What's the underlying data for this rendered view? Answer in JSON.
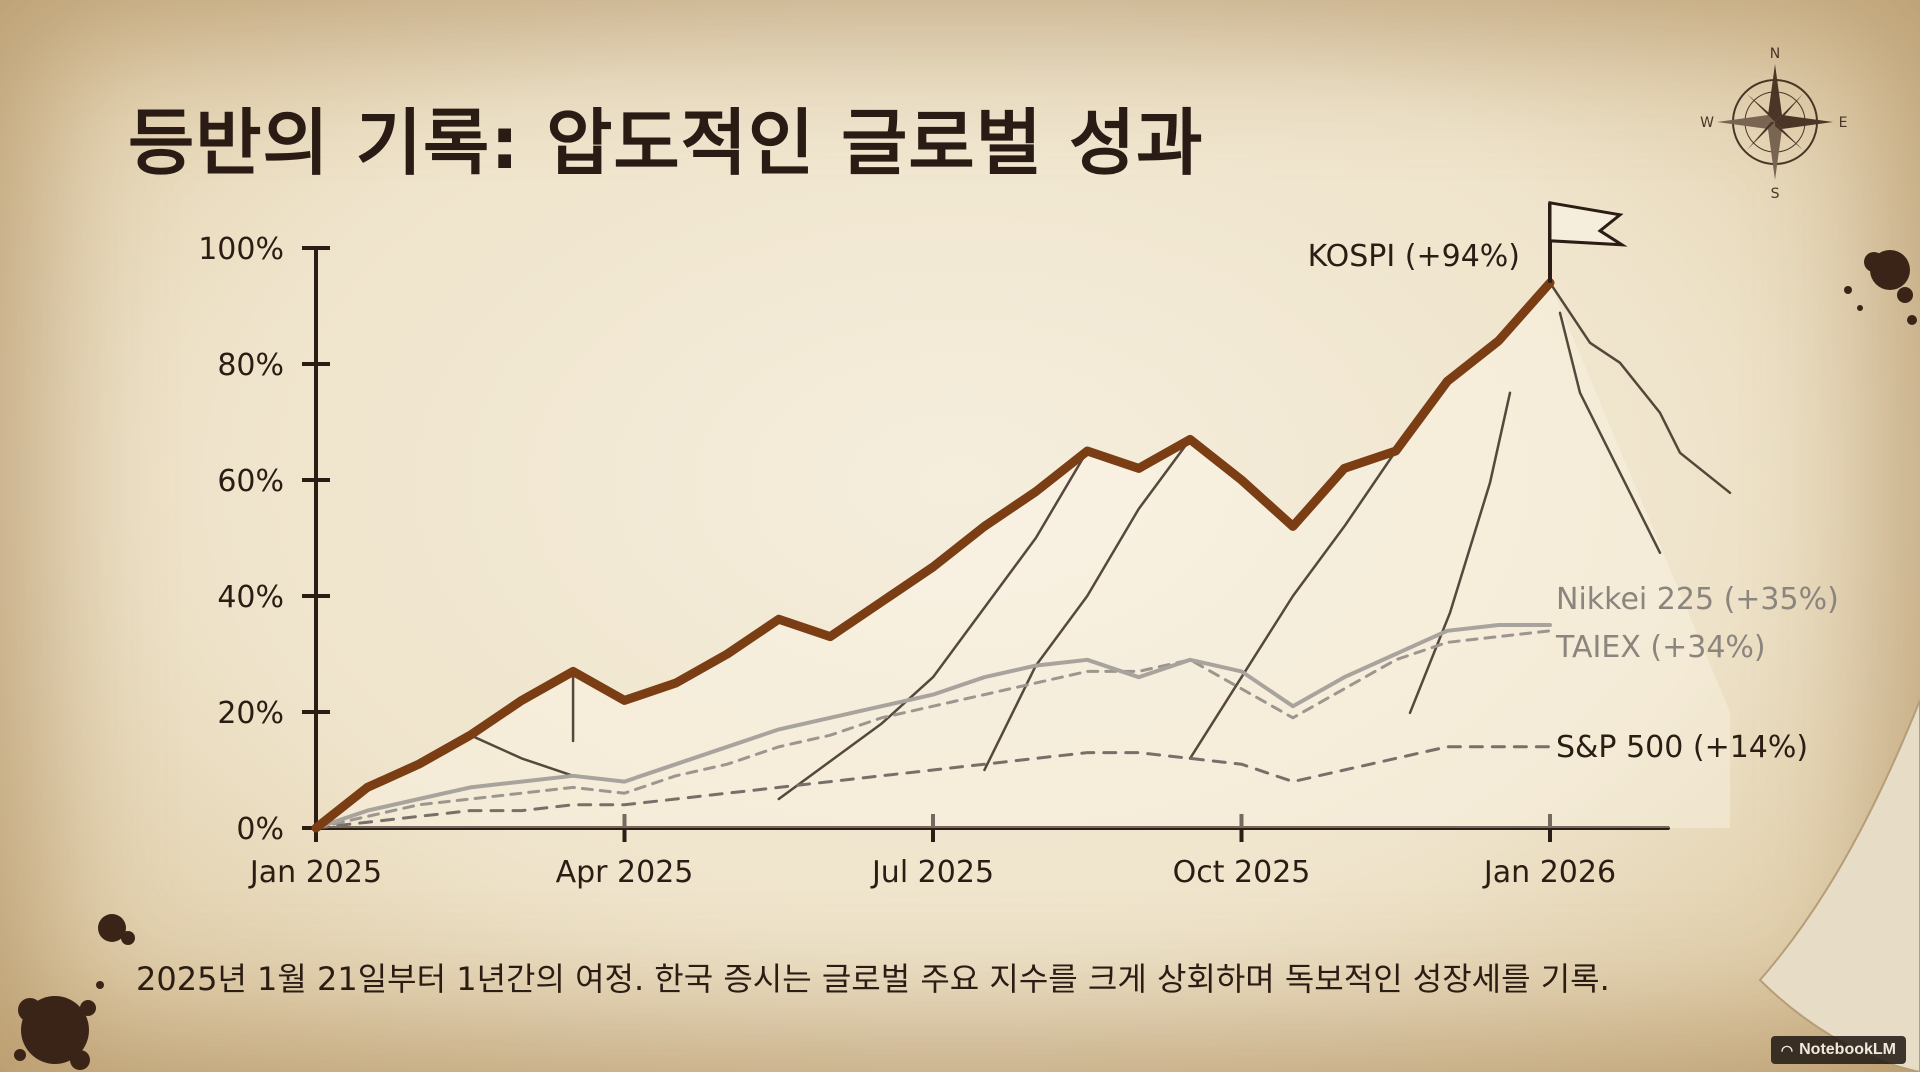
{
  "title": "등반의 기록: 압도적인 글로벌 성과",
  "caption": "2025년 1월 21일부터 1년간의 여정. 한국 증시는 글로벌 주요 지수를 크게 상회하며 독보적인 성장세를 기록.",
  "brand": "NotebookLM",
  "compass": {
    "n": "N",
    "e": "E",
    "s": "S",
    "w": "W"
  },
  "colors": {
    "kospi": "#7a3d14",
    "nikkei": "#a8a39c",
    "taiex": "#9c968e",
    "sp500": "#777069",
    "axis": "#2b1d14"
  },
  "chart_data": {
    "type": "line",
    "title": "등반의 기록: 압도적인 글로벌 성과",
    "xlabel": "",
    "ylabel": "",
    "x_ticks": [
      "Jan 2025",
      "Apr 2025",
      "Jul 2025",
      "Oct 2025",
      "Jan 2026"
    ],
    "y_ticks": [
      "0%",
      "20%",
      "40%",
      "60%",
      "80%",
      "100%"
    ],
    "ylim": [
      0,
      100
    ],
    "grid": false,
    "x_months": [
      0,
      0.5,
      1,
      1.5,
      2,
      2.5,
      3,
      3.5,
      4,
      4.5,
      5,
      5.5,
      6,
      6.5,
      7,
      7.5,
      8,
      8.5,
      9,
      9.5,
      10,
      10.5,
      11,
      11.5,
      12
    ],
    "series": [
      {
        "name": "KOSPI (+94%)",
        "label": "KOSPI (+94%)",
        "key": "kospi",
        "values": [
          0,
          7,
          11,
          16,
          22,
          27,
          22,
          25,
          30,
          36,
          33,
          39,
          45,
          52,
          58,
          65,
          62,
          67,
          60,
          52,
          62,
          65,
          77,
          84,
          94
        ]
      },
      {
        "name": "Nikkei 225 (+35%)",
        "label": "Nikkei 225 (+35%)",
        "key": "nikkei",
        "values": [
          0,
          3,
          5,
          7,
          8,
          9,
          8,
          11,
          14,
          17,
          19,
          21,
          23,
          26,
          28,
          29,
          26,
          29,
          27,
          21,
          26,
          30,
          34,
          35,
          35
        ]
      },
      {
        "name": "TAIEX (+34%)",
        "label": "TAIEX (+34%)",
        "key": "taiex",
        "values": [
          0,
          2,
          4,
          5,
          6,
          7,
          6,
          9,
          11,
          14,
          16,
          19,
          21,
          23,
          25,
          27,
          27,
          29,
          24,
          19,
          24,
          29,
          32,
          33,
          34
        ]
      },
      {
        "name": "S&P 500 (+14%)",
        "label": "S&P 500 (+14%)",
        "key": "sp500",
        "values": [
          0,
          1,
          2,
          3,
          3,
          4,
          4,
          5,
          6,
          7,
          8,
          9,
          10,
          11,
          12,
          13,
          13,
          12,
          11,
          8,
          10,
          12,
          14,
          14,
          14
        ]
      }
    ]
  }
}
